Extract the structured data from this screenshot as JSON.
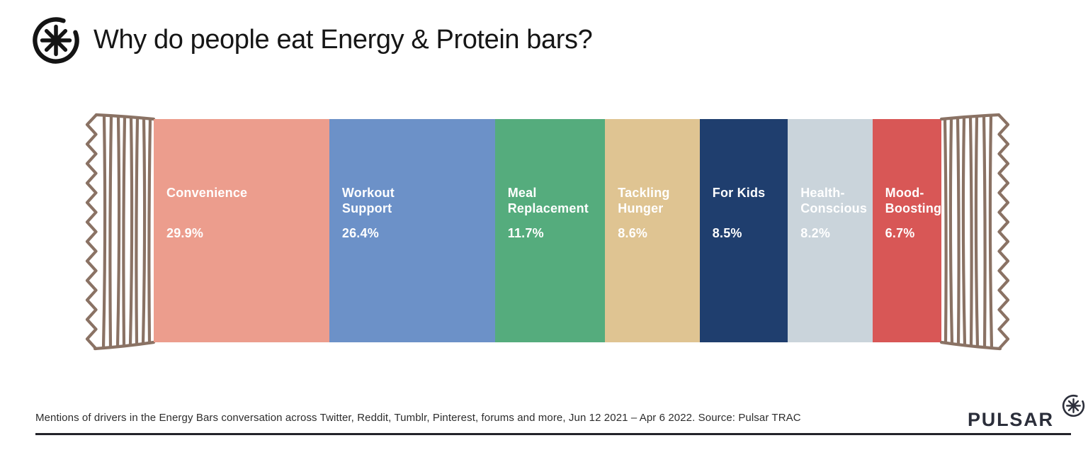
{
  "header": {
    "title": "Why do people eat Energy & Protein bars?"
  },
  "icons": {
    "header_logo": "asterisk-circle-icon",
    "brand_logo": "asterisk-circle-icon"
  },
  "chart_data": {
    "type": "bar",
    "subtype": "horizontal-stacked-percentage",
    "title": "Why do people eat Energy & Protein bars?",
    "unit": "%",
    "categories": [
      "Convenience",
      "Workout Support",
      "Meal Replacement",
      "Tackling Hunger",
      "For Kids",
      "Health-Conscious",
      "Mood-Boosting"
    ],
    "values": [
      29.9,
      26.4,
      11.7,
      8.6,
      8.5,
      8.2,
      6.7
    ],
    "segments": [
      {
        "label": "Convenience",
        "label_display": "Convenience",
        "value": 29.9,
        "value_label": "29.9%",
        "color": "#EC9D8D",
        "display_weight": 247
      },
      {
        "label": "Workout Support",
        "label_display": "Workout\nSupport",
        "value": 26.4,
        "value_label": "26.4%",
        "color": "#6C91C8",
        "display_weight": 233
      },
      {
        "label": "Meal Replacement",
        "label_display": "Meal\nReplacement",
        "value": 11.7,
        "value_label": "11.7%",
        "color": "#55AC7D",
        "display_weight": 155
      },
      {
        "label": "Tackling Hunger",
        "label_display": "Tackling\nHunger",
        "value": 8.6,
        "value_label": "8.6%",
        "color": "#DFC492",
        "display_weight": 133
      },
      {
        "label": "For Kids",
        "label_display": "For Kids",
        "value": 8.5,
        "value_label": "8.5%",
        "color": "#1F3E6E",
        "display_weight": 124
      },
      {
        "label": "Health-Conscious",
        "label_display": "Health-\nConscious",
        "value": 8.2,
        "value_label": "8.2%",
        "color": "#CAD4DB",
        "display_weight": 119
      },
      {
        "label": "Mood-Boosting",
        "label_display": "Mood-\nBoosting",
        "value": 6.7,
        "value_label": "6.7%",
        "color": "#D85756",
        "display_weight": 97
      }
    ],
    "legend_position": "labels-inside-segments",
    "axis": "none",
    "grid": false,
    "label_text_color": "#ffffff",
    "wrapper_color": "#8A7264"
  },
  "footer": {
    "caption": "Mentions of drivers in the Energy Bars conversation across Twitter, Reddit, Tumblr, Pinterest, forums and more, Jun 12 2021 – Apr 6 2022. Source: Pulsar TRAC",
    "brand": "PULSAR"
  }
}
